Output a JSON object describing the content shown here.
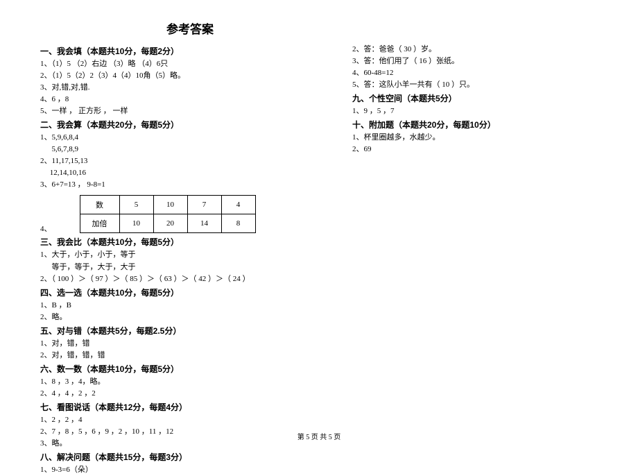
{
  "title": "参考答案",
  "footer": "第 5 页  共 5 页",
  "left": {
    "s1": {
      "head": "一、我会填（本题共10分，每题2分）",
      "l1": "1、（1）5 （2）右边 （3）略 （4）6只",
      "l2": "2、（1）5（2）2（3）4（4）10角（5）略。",
      "l3": "3、对,错,对,错.",
      "l4": "4、6 ，8",
      "l5": "5、一样 ， 正方形 ， 一样"
    },
    "s2": {
      "head": "二、我会算（本题共20分，每题5分）",
      "l1": "1、5,9,6,8,4",
      "l2": "      5,6,7,8,9",
      "l3": "2、11,17,15,13",
      "l4": "     12,14,10,16",
      "l5": "3、6+7=13 ， 9-8=1",
      "l6": "4、",
      "table": {
        "r1": [
          "数",
          "5",
          "10",
          "7",
          "4"
        ],
        "r2": [
          "加倍",
          "10",
          "20",
          "14",
          "8"
        ]
      }
    },
    "s3": {
      "head": "三、我会比（本题共10分，每题5分）",
      "l1": "1、大于，小于，小于，等于",
      "l2": "      等于，等于，大于，大于",
      "l3": "2、（ 100 ）＞（ 97 ）＞（ 85 ）＞（ 63 ）＞（ 42 ）＞（ 24 ）"
    },
    "s4": {
      "head": "四、选一选（本题共10分，每题5分）",
      "l1": "1、B ，B",
      "l2": "2、略。"
    },
    "s5": {
      "head": "五、对与错（本题共5分，每题2.5分）",
      "l1": "1、对，错，错",
      "l2": "2、对，错，错，错"
    },
    "s6": {
      "head": "六、数一数（本题共10分，每题5分）",
      "l1": "1、8 ，3 ，4，略。",
      "l2": "2、4 ，4 ，2 ，2"
    },
    "s7": {
      "head": "七、看图说话（本题共12分，每题4分）",
      "l1": "1、2 ，2 ，4",
      "l2": "2、7 ，8 ，5 ，6 ，9 ，2 ，10 ，11 ，12",
      "l3": "3、略。"
    },
    "s8": {
      "head": "八、解决问题（本题共15分，每题3分）",
      "l1": "1、9-3=6（朵）"
    }
  },
  "right": {
    "s8b": {
      "l1": "2、答：爸爸（ 30 ）岁。",
      "l2": "3、答：他们用了（ 16 ）张纸。",
      "l3": "4、60-48=12",
      "l4": "5、答：这队小羊一共有（ 10 ）只。"
    },
    "s9": {
      "head": "九、个性空间（本题共5分）",
      "l1": "1、9 ，5 ，7"
    },
    "s10": {
      "head": "十、附加题（本题共20分，每题10分）",
      "l1": "1、杯里圈越多，水越少。",
      "l2": "2、69"
    }
  }
}
